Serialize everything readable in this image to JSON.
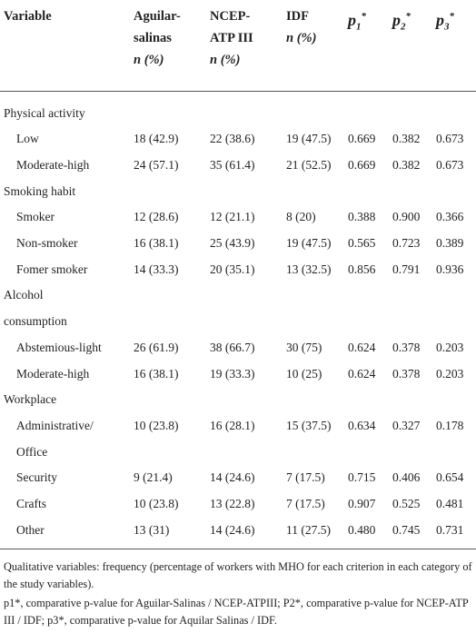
{
  "table": {
    "header": [
      {
        "lines": [
          "Variable"
        ]
      },
      {
        "lines": [
          "Aguilar-",
          "salinas"
        ],
        "unit": "n (%)"
      },
      {
        "lines": [
          "NCEP-",
          "ATP III"
        ],
        "unit": "n (%)"
      },
      {
        "lines": [
          "IDF"
        ],
        "unit": "n (%)"
      },
      {
        "symbol": "p",
        "sub": "1",
        "sup": "*"
      },
      {
        "symbol": "p",
        "sub": "2",
        "sup": "*"
      },
      {
        "symbol": "p",
        "sub": "3",
        "sup": "*"
      }
    ],
    "rows": [
      {
        "section": [
          "Physical activity"
        ]
      },
      {
        "label": [
          "Low"
        ],
        "cells": [
          "18 (42.9)",
          "22 (38.6)",
          "19 (47.5)",
          "0.669",
          "0.382",
          "0.673"
        ]
      },
      {
        "label": [
          "Moderate-high"
        ],
        "cells": [
          "24 (57.1)",
          "35 (61.4)",
          "21 (52.5)",
          "0.669",
          "0.382",
          "0.673"
        ]
      },
      {
        "section": [
          "Smoking habit"
        ]
      },
      {
        "label": [
          "Smoker"
        ],
        "cells": [
          "12 (28.6)",
          "12 (21.1)",
          "8 (20)",
          "0.388",
          "0.900",
          "0.366"
        ]
      },
      {
        "label": [
          "Non-smoker"
        ],
        "cells": [
          "16 (38.1)",
          "25 (43.9)",
          "19 (47.5)",
          "0.565",
          "0.723",
          "0.389"
        ]
      },
      {
        "label": [
          "Fomer smoker"
        ],
        "cells": [
          "14 (33.3)",
          "20 (35.1)",
          "13 (32.5)",
          "0.856",
          "0.791",
          "0.936"
        ]
      },
      {
        "section": [
          "Alcohol",
          "consumption"
        ]
      },
      {
        "label": [
          "Abstemious-light"
        ],
        "cells": [
          "26 (61.9)",
          "38 (66.7)",
          "30 (75)",
          "0.624",
          "0.378",
          "0.203"
        ]
      },
      {
        "label": [
          "Moderate-high"
        ],
        "cells": [
          "16 (38.1)",
          "19 (33.3)",
          "10 (25)",
          "0.624",
          "0.378",
          "0.203"
        ]
      },
      {
        "section": [
          "Workplace"
        ]
      },
      {
        "label": [
          "Administrative/",
          "Office"
        ],
        "cells": [
          "10 (23.8)",
          "16 (28.1)",
          "15 (37.5)",
          "0.634",
          "0.327",
          "0.178"
        ]
      },
      {
        "label": [
          "Security"
        ],
        "cells": [
          "9 (21.4)",
          "14 (24.6)",
          "7 (17.5)",
          "0.715",
          "0.406",
          "0.654"
        ]
      },
      {
        "label": [
          "Crafts"
        ],
        "cells": [
          "10 (23.8)",
          "13 (22.8)",
          "7 (17.5)",
          "0.907",
          "0.525",
          "0.481"
        ]
      },
      {
        "label": [
          "Other"
        ],
        "cells": [
          "13 (31)",
          "14 (24.6)",
          "11 (27.5)",
          "0.480",
          "0.745",
          "0.731"
        ]
      }
    ],
    "notes": [
      "Qualitative variables: frequency (percentage of workers with MHO for each criterion in each category of the study variables).",
      "p1*, comparative p-value for Aguilar-Salinas / NCEP-ATPIII; P2*, comparative p-value for NCEP-ATP III / IDF; p3*, comparative p-value for Aquilar Salinas / IDF."
    ]
  }
}
